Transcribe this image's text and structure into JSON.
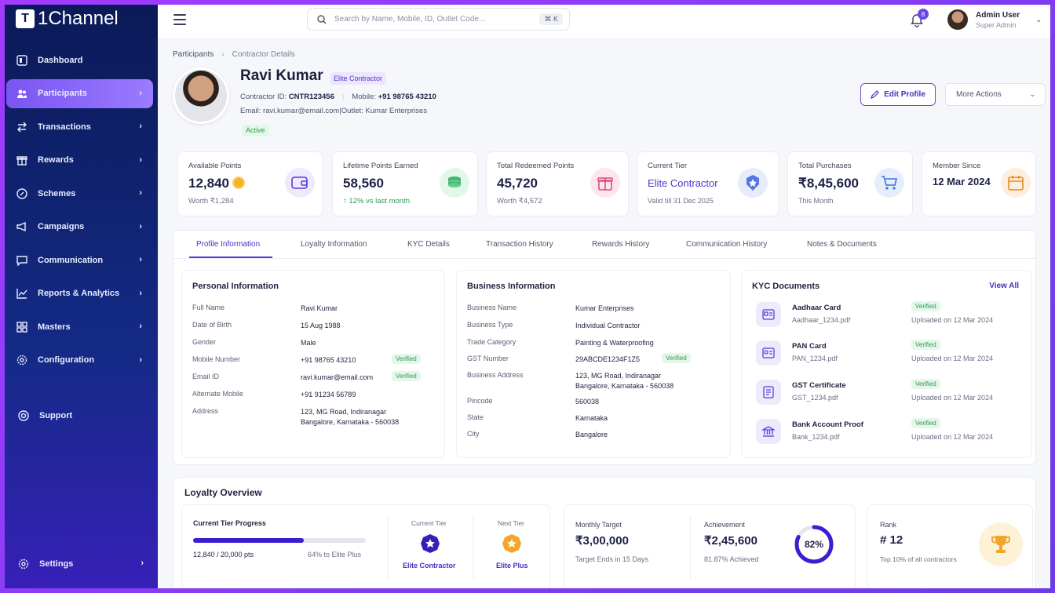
{
  "app": {
    "logo_text": "1Channel",
    "logo_mark": "T"
  },
  "sidebar": {
    "items": [
      {
        "label": "Dashboard",
        "icon": "dashboard-icon"
      },
      {
        "label": "Participants",
        "icon": "users-icon",
        "active": true
      },
      {
        "label": "Transactions",
        "icon": "transactions-icon"
      },
      {
        "label": "Rewards",
        "icon": "gift-icon"
      },
      {
        "label": "Schemes",
        "icon": "tag-icon"
      },
      {
        "label": "Campaigns",
        "icon": "megaphone-icon"
      },
      {
        "label": "Communication",
        "icon": "chat-icon"
      },
      {
        "label": "Reports & Analytics",
        "icon": "chart-icon"
      },
      {
        "label": "Masters",
        "icon": "grid-icon"
      },
      {
        "label": "Configuration",
        "icon": "gear-icon"
      }
    ],
    "support": "Support",
    "settings": "Settings"
  },
  "topbar": {
    "search_placeholder": "Search by Name, Mobile, ID, Outlet Code...",
    "search_shortcut": "⌘ K",
    "notifications": "8",
    "user_name": "Admin User",
    "user_role": "Super Admin"
  },
  "breadcrumb": {
    "parent": "Participants",
    "current": "Contractor Details"
  },
  "profile": {
    "name": "Ravi Kumar",
    "tier_tag": "Elite Contractor",
    "contractor_id_label": "Contractor ID:",
    "contractor_id": "CNTR123456",
    "mobile_label": "Mobile:",
    "mobile": "+91 98765 43210",
    "email_line": "Email: ravi.kumar@email.com",
    "outlet_line": "Outlet: Kumar Enterprises",
    "status": "Active",
    "edit_label": "Edit Profile",
    "more_label": "More Actions"
  },
  "stats": [
    {
      "label": "Available Points",
      "value": "12,840",
      "sub": "Worth ₹1,284"
    },
    {
      "label": "Lifetime Points Earned",
      "value": "58,560",
      "sub": "↑ 12% vs last month"
    },
    {
      "label": "Total Redeemed Points",
      "value": "45,720",
      "sub": "Worth ₹4,572"
    },
    {
      "label": "Current Tier",
      "value": "Elite Contractor",
      "sub": "Valid till 31 Dec 2025"
    },
    {
      "label": "Total Purchases",
      "value": "₹8,45,600",
      "sub": "This Month"
    },
    {
      "label": "Member Since",
      "value": "12 Mar 2024",
      "sub": ""
    }
  ],
  "tabs": [
    "Profile Information",
    "Loyalty Information",
    "KYC Details",
    "Transaction History",
    "Rewards History",
    "Communication History",
    "Notes & Documents"
  ],
  "personal": {
    "title": "Personal Information",
    "rows": [
      {
        "k": "Full Name",
        "v": "Ravi Kumar"
      },
      {
        "k": "Date of Birth",
        "v": "15 Aug 1988"
      },
      {
        "k": "Gender",
        "v": "Male"
      },
      {
        "k": "Mobile Number",
        "v": "+91 98765 43210",
        "badge": "Verified"
      },
      {
        "k": "Email ID",
        "v": "ravi.kumar@email.com",
        "badge": "Verified"
      },
      {
        "k": "Alternate Mobile",
        "v": "+91 91234 56789"
      },
      {
        "k": "Address",
        "v": "123, MG Road, Indiranagar",
        "v2": "Bangalore, Karnataka - 560038"
      }
    ]
  },
  "business": {
    "title": "Business Information",
    "rows": [
      {
        "k": "Business Name",
        "v": "Kumar Enterprises"
      },
      {
        "k": "Business Type",
        "v": "Individual Contractor"
      },
      {
        "k": "Trade Category",
        "v": "Painting & Waterproofing"
      },
      {
        "k": "GST Number",
        "v": "29ABCDE1234F1Z5",
        "badge": "Verified"
      },
      {
        "k": "Business Address",
        "v": "123, MG Road, Indiranagar",
        "v2": "Bangalore, Karnataka - 560038"
      },
      {
        "k": "Pincode",
        "v": "560038"
      },
      {
        "k": "State",
        "v": "Karnataka"
      },
      {
        "k": "City",
        "v": "Bangalore"
      }
    ]
  },
  "kyc": {
    "title": "KYC Documents",
    "view_all": "View All",
    "docs": [
      {
        "title": "Aadhaar Card",
        "file": "Aadhaar_1234.pdf",
        "status": "Verified",
        "uploaded": "Uploaded on 12 Mar 2024"
      },
      {
        "title": "PAN Card",
        "file": "PAN_1234.pdf",
        "status": "Verified",
        "uploaded": "Uploaded on 12 Mar 2024"
      },
      {
        "title": "GST Certificate",
        "file": "GST_1234.pdf",
        "status": "Verified",
        "uploaded": "Uploaded on 12 Mar 2024"
      },
      {
        "title": "Bank Account Proof",
        "file": "Bank_1234.pdf",
        "status": "Verified",
        "uploaded": "Uploaded on 12 Mar 2024"
      }
    ]
  },
  "loyalty": {
    "title": "Loyalty Overview",
    "progress_title": "Current Tier Progress",
    "progress_text": "12,840 / 20,000 pts",
    "progress_pct_text": "64% to Elite Plus",
    "progress_fraction": 0.64,
    "current_tier_label": "Current Tier",
    "current_tier": "Elite Contractor",
    "next_tier_label": "Next Tier",
    "next_tier": "Elite Plus",
    "monthly_target_label": "Monthly Target",
    "monthly_target": "₹3,00,000",
    "target_note": "Target Ends in 15 Days",
    "achievement_label": "Achievement",
    "achievement": "₹2,45,600",
    "achievement_note": "81.87% Achieved",
    "ring_text": "82%",
    "ring_fraction": 0.82,
    "rank_label": "Rank",
    "rank": "# 12",
    "rank_note": "Top 10% of all contractors"
  },
  "colors": {
    "accent": "#5a3be0",
    "sidebar": "#0b1a57",
    "verified": "#2e9a55"
  }
}
